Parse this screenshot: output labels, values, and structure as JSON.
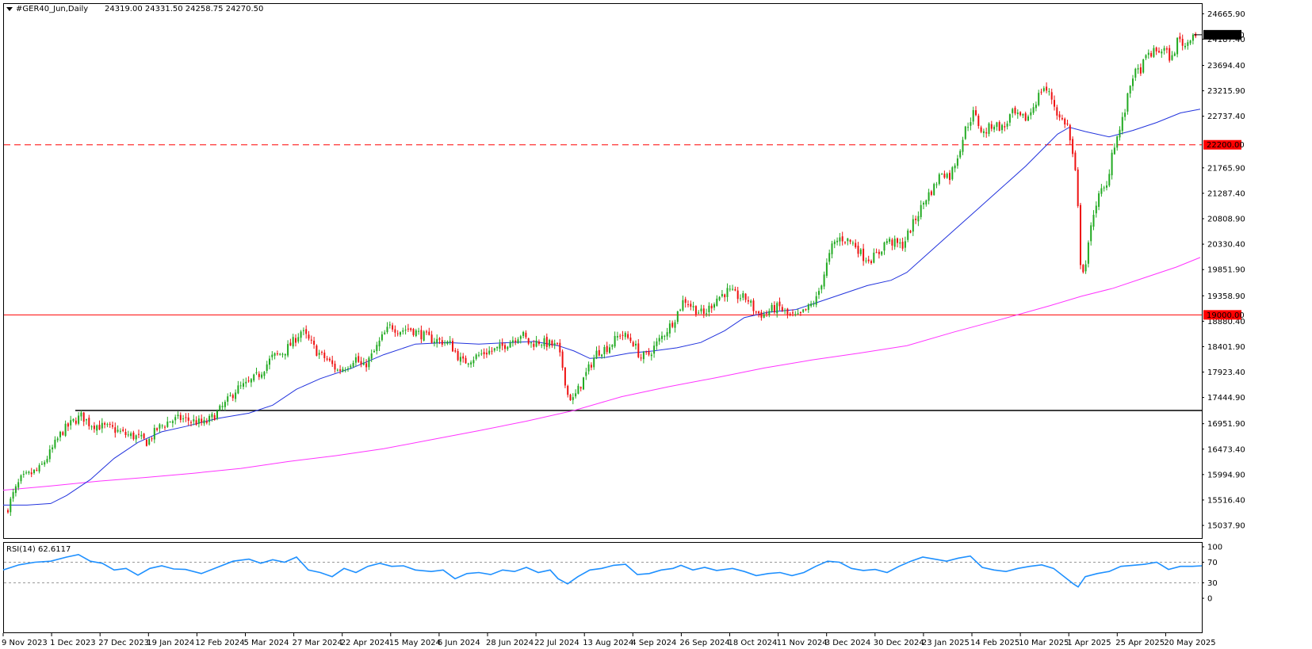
{
  "chart_data": {
    "type": "candlestick",
    "header": {
      "symbol_label": "#GER40_Jun,Daily",
      "ohlc_text": "24319.00 24331.50 24258.75 24270.50"
    },
    "price_axis": {
      "ylim": [
        14800,
        24850
      ],
      "ticks": [
        "24665.90",
        "24187.40",
        "23694.40",
        "23215.90",
        "22737.40",
        "21765.90",
        "21287.40",
        "20808.90",
        "20330.40",
        "19851.90",
        "19358.90",
        "18880.40",
        "18401.90",
        "17923.40",
        "17444.90",
        "16951.90",
        "16473.40",
        "15994.90",
        "15516.40",
        "15037.90"
      ]
    },
    "time_axis": {
      "labels": [
        "9 Nov 2023",
        "1 Dec 2023",
        "27 Dec 2023",
        "19 Jan 2024",
        "12 Feb 2024",
        "5 Mar 2024",
        "27 Mar 2024",
        "22 Apr 2024",
        "15 May 2024",
        "6 Jun 2024",
        "28 Jun 2024",
        "22 Jul 2024",
        "13 Aug 2024",
        "4 Sep 2024",
        "26 Sep 2024",
        "18 Oct 2024",
        "11 Nov 2024",
        "3 Dec 2024",
        "30 Dec 2024",
        "23 Jan 2025",
        "14 Feb 2025",
        "10 Mar 2025",
        "1 Apr 2025",
        "25 Apr 2025",
        "20 May 2025"
      ]
    },
    "current_price": {
      "value": 24270.5,
      "label": "24270.50"
    },
    "levels": [
      {
        "value": 22200,
        "label": "22200.00",
        "style": "dashed",
        "color": "#ff0000"
      },
      {
        "value": 19000,
        "label": "19000.00",
        "style": "solid",
        "color": "#ff0000"
      },
      {
        "value": 17200,
        "label": "",
        "style": "solid",
        "color": "#000000"
      }
    ],
    "close_path": [
      [
        0,
        15300
      ],
      [
        8,
        15600
      ],
      [
        18,
        15900
      ],
      [
        30,
        16000
      ],
      [
        42,
        16100
      ],
      [
        55,
        16400
      ],
      [
        70,
        16800
      ],
      [
        85,
        17000
      ],
      [
        95,
        17100
      ],
      [
        105,
        16950
      ],
      [
        120,
        16900
      ],
      [
        135,
        16850
      ],
      [
        150,
        16750
      ],
      [
        165,
        16700
      ],
      [
        178,
        16600
      ],
      [
        190,
        16850
      ],
      [
        205,
        17000
      ],
      [
        220,
        17050
      ],
      [
        235,
        17000
      ],
      [
        250,
        16950
      ],
      [
        262,
        17100
      ],
      [
        275,
        17300
      ],
      [
        290,
        17600
      ],
      [
        305,
        17700
      ],
      [
        320,
        17900
      ],
      [
        335,
        18200
      ],
      [
        350,
        18300
      ],
      [
        362,
        18500
      ],
      [
        372,
        18700
      ],
      [
        380,
        18550
      ],
      [
        392,
        18300
      ],
      [
        405,
        18150
      ],
      [
        418,
        17950
      ],
      [
        430,
        18050
      ],
      [
        440,
        18200
      ],
      [
        450,
        18000
      ],
      [
        462,
        18250
      ],
      [
        475,
        18600
      ],
      [
        485,
        18800
      ],
      [
        495,
        18700
      ],
      [
        508,
        18750
      ],
      [
        520,
        18650
      ],
      [
        535,
        18550
      ],
      [
        550,
        18500
      ],
      [
        560,
        18450
      ],
      [
        575,
        18100
      ],
      [
        590,
        18200
      ],
      [
        605,
        18300
      ],
      [
        620,
        18350
      ],
      [
        635,
        18500
      ],
      [
        650,
        18650
      ],
      [
        660,
        18450
      ],
      [
        672,
        18500
      ],
      [
        685,
        18450
      ],
      [
        695,
        18400
      ],
      [
        702,
        18000
      ],
      [
        708,
        17500
      ],
      [
        715,
        17400
      ],
      [
        725,
        17700
      ],
      [
        735,
        18000
      ],
      [
        745,
        18300
      ],
      [
        760,
        18400
      ],
      [
        775,
        18650
      ],
      [
        790,
        18500
      ],
      [
        800,
        18200
      ],
      [
        810,
        18250
      ],
      [
        820,
        18450
      ],
      [
        830,
        18650
      ],
      [
        842,
        18900
      ],
      [
        855,
        19300
      ],
      [
        865,
        19150
      ],
      [
        880,
        19000
      ],
      [
        895,
        19300
      ],
      [
        910,
        19450
      ],
      [
        922,
        19350
      ],
      [
        935,
        19300
      ],
      [
        945,
        19050
      ],
      [
        955,
        19000
      ],
      [
        965,
        19100
      ],
      [
        975,
        19150
      ],
      [
        985,
        19000
      ],
      [
        998,
        18950
      ],
      [
        1010,
        19100
      ],
      [
        1022,
        19300
      ],
      [
        1032,
        19800
      ],
      [
        1042,
        20300
      ],
      [
        1052,
        20450
      ],
      [
        1062,
        20400
      ],
      [
        1072,
        20300
      ],
      [
        1080,
        20100
      ],
      [
        1090,
        20050
      ],
      [
        1100,
        20150
      ],
      [
        1110,
        20400
      ],
      [
        1120,
        20350
      ],
      [
        1130,
        20300
      ],
      [
        1140,
        20600
      ],
      [
        1150,
        20900
      ],
      [
        1160,
        21200
      ],
      [
        1170,
        21400
      ],
      [
        1180,
        21700
      ],
      [
        1190,
        21600
      ],
      [
        1200,
        22000
      ],
      [
        1210,
        22500
      ],
      [
        1220,
        22800
      ],
      [
        1232,
        22400
      ],
      [
        1245,
        22600
      ],
      [
        1258,
        22500
      ],
      [
        1268,
        22800
      ],
      [
        1278,
        22700
      ],
      [
        1288,
        22700
      ],
      [
        1298,
        23000
      ],
      [
        1308,
        23300
      ],
      [
        1318,
        23100
      ],
      [
        1328,
        22700
      ],
      [
        1338,
        22600
      ],
      [
        1345,
        22000
      ],
      [
        1350,
        21500
      ],
      [
        1355,
        20000
      ],
      [
        1360,
        19800
      ],
      [
        1365,
        20300
      ],
      [
        1372,
        21000
      ],
      [
        1380,
        21300
      ],
      [
        1388,
        21400
      ],
      [
        1395,
        22100
      ],
      [
        1405,
        22500
      ],
      [
        1412,
        22900
      ],
      [
        1420,
        23500
      ],
      [
        1430,
        23600
      ],
      [
        1440,
        23900
      ],
      [
        1450,
        23950
      ],
      [
        1460,
        24000
      ],
      [
        1470,
        23800
      ],
      [
        1478,
        24200
      ],
      [
        1488,
        24050
      ],
      [
        1495,
        24300
      ],
      [
        1505,
        24270
      ]
    ],
    "sma_blue": [
      [
        0,
        15420
      ],
      [
        30,
        15420
      ],
      [
        60,
        15450
      ],
      [
        80,
        15600
      ],
      [
        110,
        15900
      ],
      [
        140,
        16300
      ],
      [
        170,
        16600
      ],
      [
        200,
        16800
      ],
      [
        230,
        16900
      ],
      [
        270,
        17050
      ],
      [
        310,
        17150
      ],
      [
        340,
        17300
      ],
      [
        370,
        17600
      ],
      [
        400,
        17800
      ],
      [
        440,
        18000
      ],
      [
        480,
        18250
      ],
      [
        520,
        18450
      ],
      [
        560,
        18480
      ],
      [
        600,
        18450
      ],
      [
        640,
        18480
      ],
      [
        670,
        18500
      ],
      [
        700,
        18420
      ],
      [
        720,
        18320
      ],
      [
        740,
        18180
      ],
      [
        760,
        18200
      ],
      [
        790,
        18280
      ],
      [
        820,
        18320
      ],
      [
        850,
        18380
      ],
      [
        880,
        18480
      ],
      [
        910,
        18700
      ],
      [
        935,
        18950
      ],
      [
        965,
        19050
      ],
      [
        1000,
        19100
      ],
      [
        1030,
        19250
      ],
      [
        1060,
        19400
      ],
      [
        1090,
        19550
      ],
      [
        1120,
        19650
      ],
      [
        1140,
        19800
      ],
      [
        1170,
        20200
      ],
      [
        1200,
        20600
      ],
      [
        1230,
        21000
      ],
      [
        1260,
        21400
      ],
      [
        1290,
        21800
      ],
      [
        1310,
        22100
      ],
      [
        1330,
        22400
      ],
      [
        1345,
        22530
      ],
      [
        1365,
        22450
      ],
      [
        1395,
        22350
      ],
      [
        1425,
        22470
      ],
      [
        1455,
        22620
      ],
      [
        1485,
        22800
      ],
      [
        1510,
        22870
      ]
    ],
    "sma_magenta": [
      [
        0,
        15700
      ],
      [
        60,
        15780
      ],
      [
        120,
        15870
      ],
      [
        180,
        15940
      ],
      [
        240,
        16020
      ],
      [
        300,
        16110
      ],
      [
        360,
        16240
      ],
      [
        420,
        16350
      ],
      [
        480,
        16480
      ],
      [
        540,
        16650
      ],
      [
        600,
        16820
      ],
      [
        660,
        17000
      ],
      [
        720,
        17200
      ],
      [
        780,
        17460
      ],
      [
        840,
        17650
      ],
      [
        900,
        17820
      ],
      [
        960,
        18000
      ],
      [
        1020,
        18150
      ],
      [
        1080,
        18280
      ],
      [
        1140,
        18420
      ],
      [
        1200,
        18680
      ],
      [
        1260,
        18920
      ],
      [
        1320,
        19170
      ],
      [
        1360,
        19350
      ],
      [
        1400,
        19500
      ],
      [
        1440,
        19700
      ],
      [
        1480,
        19900
      ],
      [
        1510,
        20080
      ]
    ],
    "rsi": {
      "label": "RSI(14) 62.6117",
      "ticks": [
        "100",
        "70",
        "30",
        "0"
      ],
      "levels": [
        70,
        30
      ],
      "values": [
        [
          0,
          55
        ],
        [
          20,
          65
        ],
        [
          40,
          70
        ],
        [
          60,
          72
        ],
        [
          80,
          80
        ],
        [
          95,
          85
        ],
        [
          110,
          72
        ],
        [
          125,
          68
        ],
        [
          140,
          55
        ],
        [
          155,
          58
        ],
        [
          170,
          45
        ],
        [
          185,
          58
        ],
        [
          200,
          63
        ],
        [
          215,
          57
        ],
        [
          230,
          56
        ],
        [
          250,
          48
        ],
        [
          270,
          60
        ],
        [
          290,
          72
        ],
        [
          310,
          76
        ],
        [
          325,
          68
        ],
        [
          340,
          75
        ],
        [
          355,
          70
        ],
        [
          370,
          80
        ],
        [
          385,
          55
        ],
        [
          400,
          50
        ],
        [
          415,
          42
        ],
        [
          430,
          58
        ],
        [
          445,
          50
        ],
        [
          460,
          62
        ],
        [
          475,
          68
        ],
        [
          490,
          62
        ],
        [
          505,
          63
        ],
        [
          520,
          55
        ],
        [
          540,
          52
        ],
        [
          555,
          55
        ],
        [
          570,
          38
        ],
        [
          585,
          48
        ],
        [
          600,
          50
        ],
        [
          615,
          46
        ],
        [
          630,
          55
        ],
        [
          645,
          52
        ],
        [
          660,
          60
        ],
        [
          675,
          50
        ],
        [
          690,
          55
        ],
        [
          700,
          38
        ],
        [
          712,
          28
        ],
        [
          725,
          42
        ],
        [
          740,
          55
        ],
        [
          755,
          58
        ],
        [
          770,
          64
        ],
        [
          785,
          66
        ],
        [
          800,
          46
        ],
        [
          815,
          48
        ],
        [
          830,
          55
        ],
        [
          845,
          58
        ],
        [
          855,
          64
        ],
        [
          870,
          55
        ],
        [
          885,
          60
        ],
        [
          900,
          54
        ],
        [
          920,
          58
        ],
        [
          935,
          52
        ],
        [
          950,
          44
        ],
        [
          965,
          48
        ],
        [
          980,
          50
        ],
        [
          995,
          44
        ],
        [
          1010,
          50
        ],
        [
          1025,
          62
        ],
        [
          1040,
          72
        ],
        [
          1055,
          70
        ],
        [
          1070,
          58
        ],
        [
          1085,
          54
        ],
        [
          1100,
          56
        ],
        [
          1115,
          50
        ],
        [
          1130,
          62
        ],
        [
          1145,
          72
        ],
        [
          1160,
          80
        ],
        [
          1175,
          76
        ],
        [
          1190,
          72
        ],
        [
          1205,
          78
        ],
        [
          1220,
          82
        ],
        [
          1235,
          60
        ],
        [
          1250,
          55
        ],
        [
          1265,
          52
        ],
        [
          1280,
          58
        ],
        [
          1295,
          62
        ],
        [
          1310,
          65
        ],
        [
          1325,
          58
        ],
        [
          1340,
          40
        ],
        [
          1350,
          28
        ],
        [
          1356,
          22
        ],
        [
          1365,
          42
        ],
        [
          1380,
          48
        ],
        [
          1395,
          52
        ],
        [
          1410,
          62
        ],
        [
          1425,
          64
        ],
        [
          1440,
          66
        ],
        [
          1455,
          70
        ],
        [
          1470,
          56
        ],
        [
          1485,
          62
        ],
        [
          1500,
          62
        ],
        [
          1512,
          63
        ]
      ]
    }
  }
}
